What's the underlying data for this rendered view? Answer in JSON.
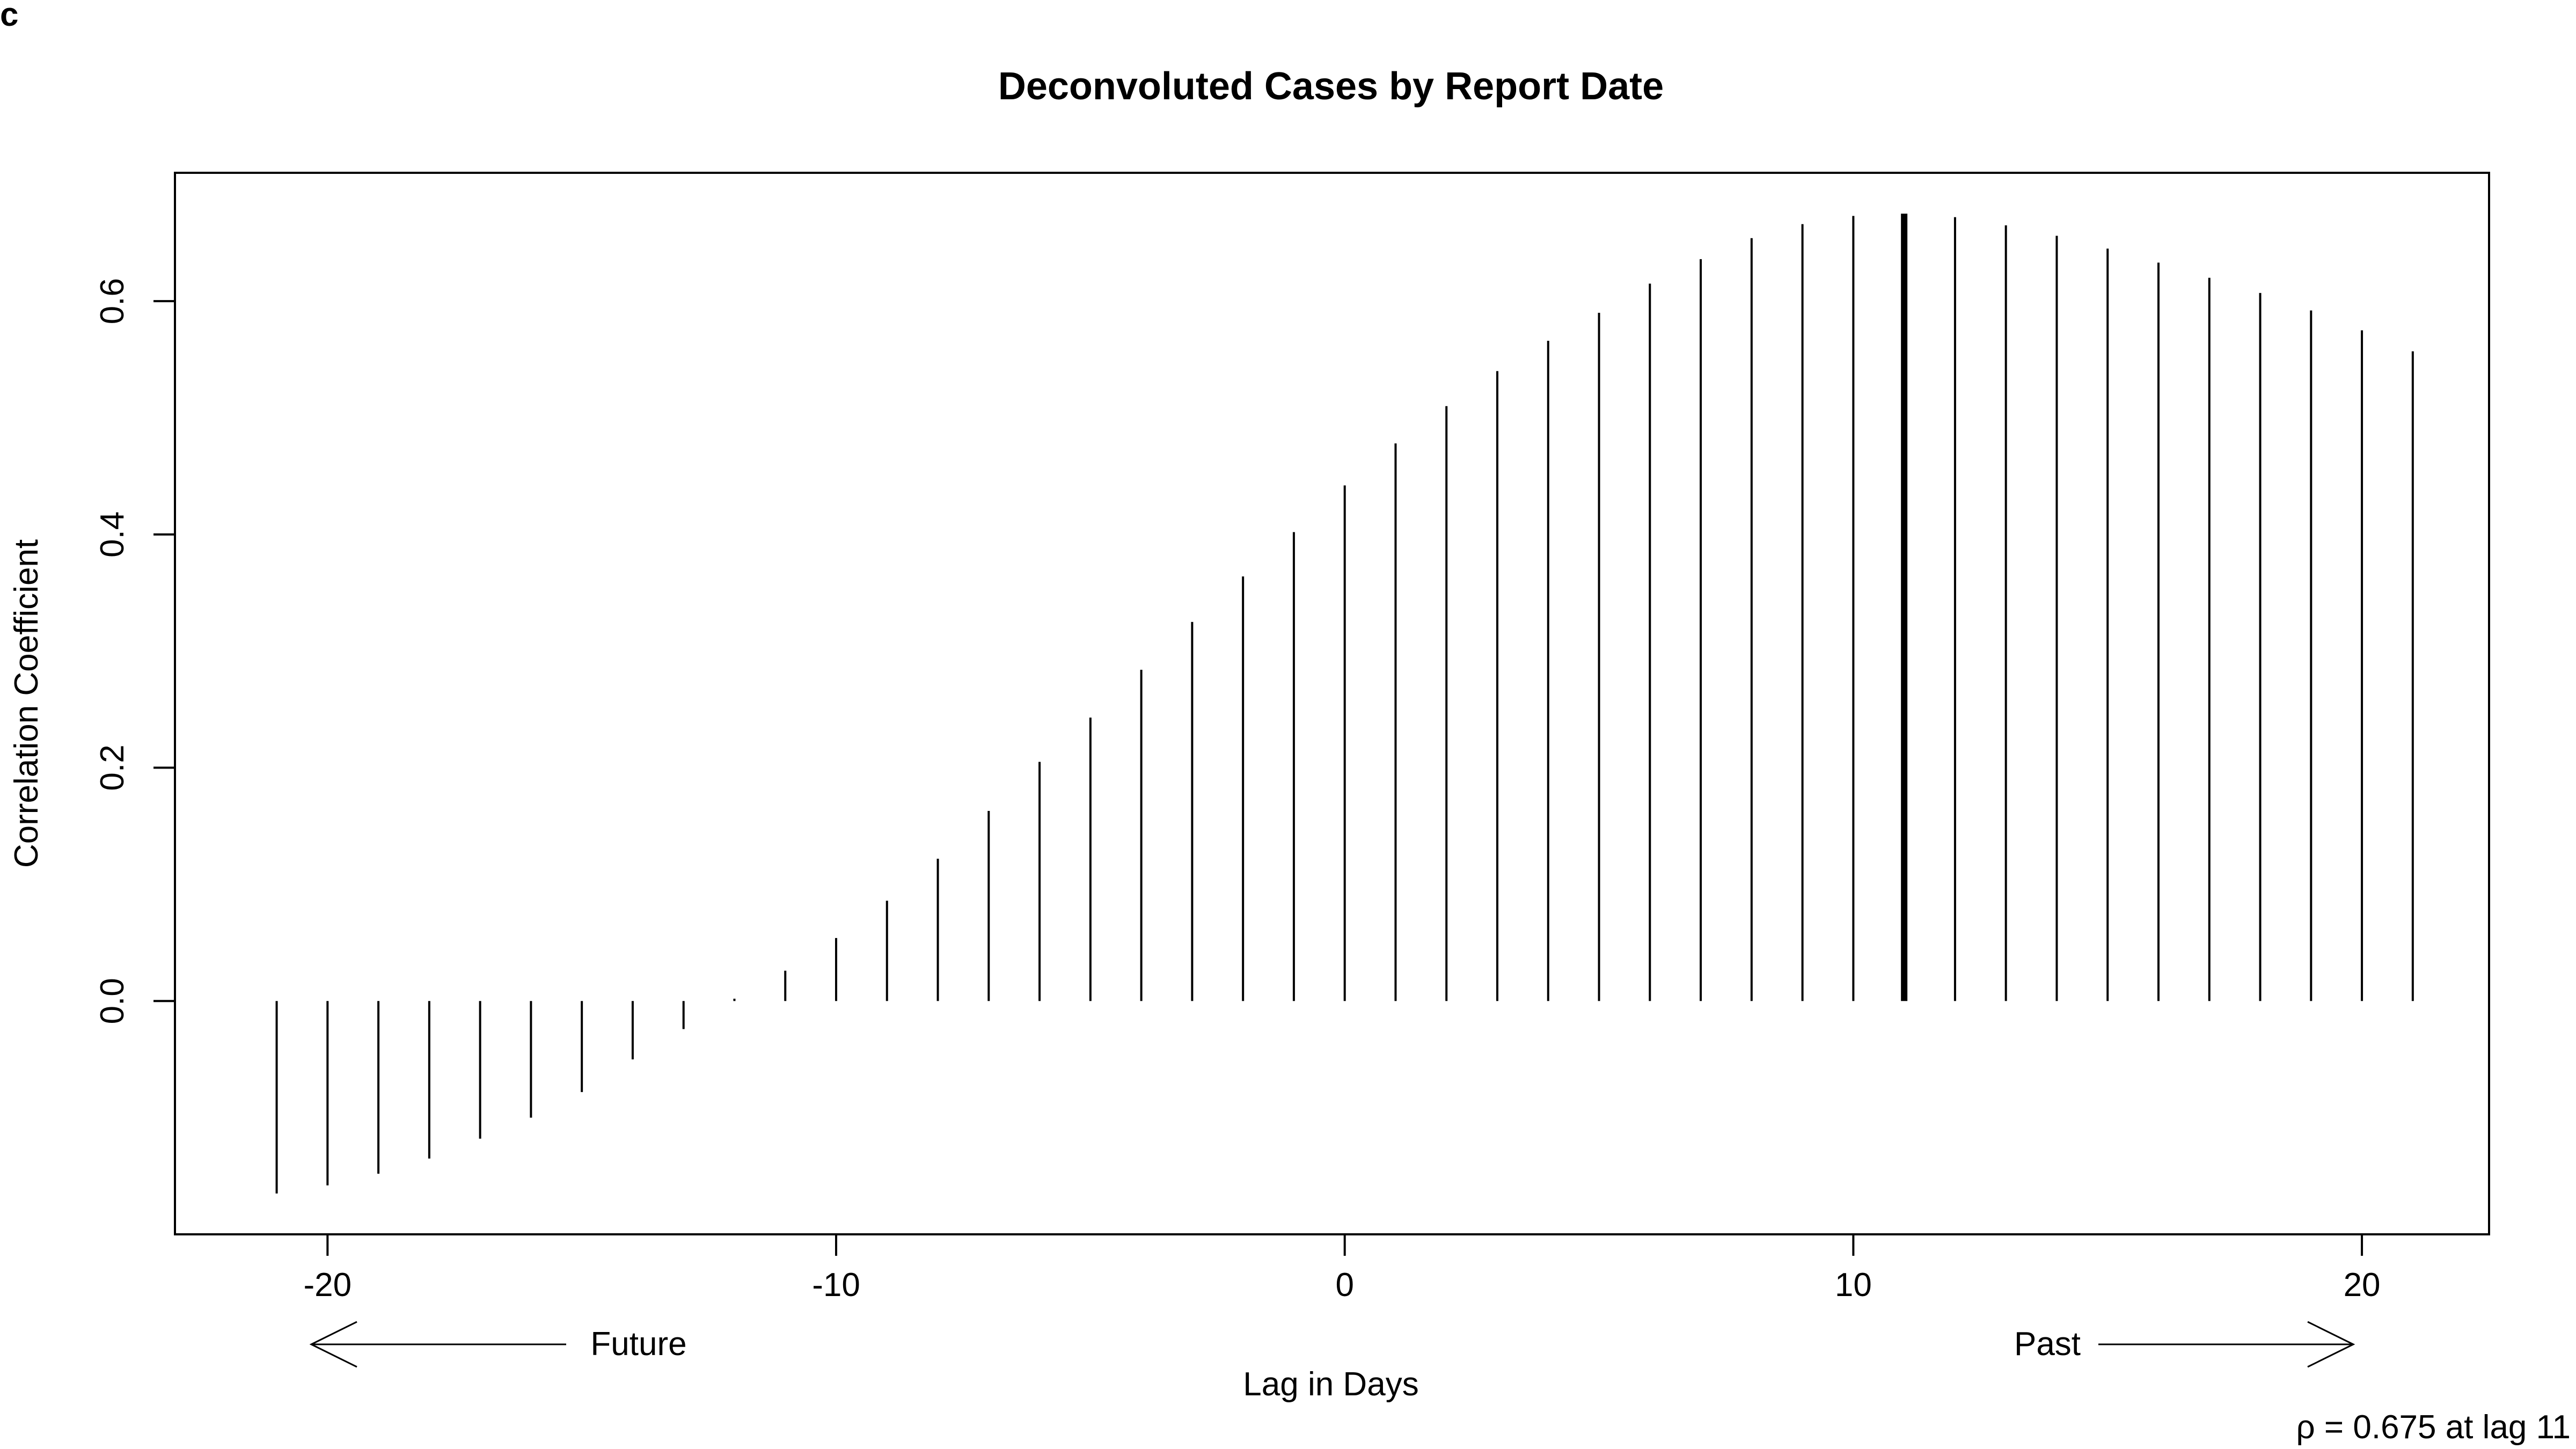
{
  "panel_label": "c",
  "chart_data": {
    "type": "bar",
    "title": "Deconvoluted Cases by Report Date",
    "xlabel": "Lag in Days",
    "ylabel": "Correlation Coefficient",
    "xlim": [
      -23,
      22.5
    ],
    "ylim": [
      -0.2,
      0.71
    ],
    "x_ticks": [
      -20,
      -10,
      0,
      10,
      20
    ],
    "x_tick_labels": [
      "-20",
      "-10",
      "0",
      "10",
      "20"
    ],
    "y_ticks": [
      0.0,
      0.2,
      0.4,
      0.6
    ],
    "y_tick_labels": [
      "0.0",
      "0.2",
      "0.4",
      "0.6"
    ],
    "lags": [
      -21,
      -20,
      -19,
      -18,
      -17,
      -16,
      -15,
      -14,
      -13,
      -12,
      -11,
      -10,
      -9,
      -8,
      -7,
      -6,
      -5,
      -4,
      -3,
      -2,
      -1,
      0,
      1,
      2,
      3,
      4,
      5,
      6,
      7,
      8,
      9,
      10,
      11,
      12,
      13,
      14,
      15,
      16,
      17,
      18,
      19,
      20,
      21
    ],
    "correlations": [
      -0.165,
      -0.158,
      -0.148,
      -0.135,
      -0.118,
      -0.1,
      -0.078,
      -0.05,
      -0.024,
      0.002,
      0.026,
      0.054,
      0.086,
      0.122,
      0.163,
      0.205,
      0.243,
      0.284,
      0.325,
      0.364,
      0.402,
      0.442,
      0.478,
      0.51,
      0.54,
      0.566,
      0.59,
      0.615,
      0.636,
      0.654,
      0.666,
      0.673,
      0.675,
      0.672,
      0.665,
      0.656,
      0.645,
      0.633,
      0.62,
      0.607,
      0.592,
      0.575,
      0.557
    ],
    "highlight": {
      "lag": 11,
      "value": 0.675
    },
    "annotations": {
      "future": "Future",
      "past": "Past",
      "rho_note": "ρ = 0.675 at lag 11"
    },
    "grid": false
  }
}
